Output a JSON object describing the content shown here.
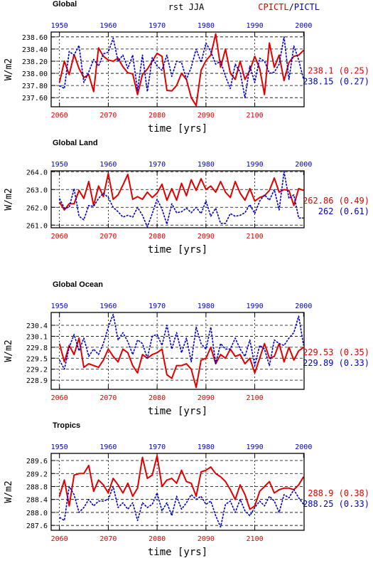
{
  "header": {
    "center": "rst JJA",
    "legend_red": "CPICTL",
    "legend_sep": "/",
    "legend_blue": "PICTL"
  },
  "colors": {
    "red": "#e00000",
    "blue": "#0000cc",
    "grid": "#000000"
  },
  "chart_data": [
    {
      "type": "line",
      "title": "Global",
      "ylabel": "W/m2",
      "xlabel": "time [yrs]",
      "ylim": [
        237.45,
        238.68
      ],
      "yticks": [
        237.6,
        237.8,
        238.0,
        238.2,
        238.4,
        238.6
      ],
      "ytick_labels": [
        "237.60",
        "237.80",
        "238.00",
        "238.20",
        "238.40",
        "238.60"
      ],
      "bottom_xticks": [
        2060,
        2070,
        2080,
        2090,
        2100
      ],
      "top_xticks": [
        1950,
        1960,
        1970,
        1980,
        1990,
        2000
      ],
      "stats_red": "238.1 (0.25)",
      "stats_blue": "238.15 (0.27)",
      "series": [
        {
          "color": "red",
          "x_start": 2060,
          "values": [
            237.85,
            238.2,
            237.98,
            238.31,
            238.08,
            237.93,
            237.98,
            237.7,
            238.42,
            238.28,
            238.22,
            238.2,
            238.25,
            238.11,
            238.01,
            237.99,
            237.65,
            237.98,
            238.07,
            238.2,
            238.33,
            238.28,
            237.72,
            237.71,
            237.8,
            238.0,
            237.9,
            237.6,
            237.47,
            238.05,
            238.21,
            238.3,
            238.65,
            238.1,
            238.4,
            238.0,
            237.9,
            238.2,
            237.9,
            238.05,
            238.28,
            238.08,
            237.65,
            238.5,
            238.1,
            238.3,
            237.88,
            238.18,
            238.28,
            238.3,
            238.38
          ]
        },
        {
          "color": "blue",
          "x_start": 2060,
          "values": [
            237.8,
            237.75,
            238.36,
            238.3,
            238.46,
            237.85,
            238.02,
            238.23,
            238.12,
            238.32,
            238.35,
            238.58,
            238.2,
            238.3,
            238.08,
            238.3,
            237.72,
            238.3,
            237.7,
            238.26,
            238.12,
            238.05,
            238.3,
            237.95,
            238.2,
            238.18,
            237.9,
            238.1,
            238.4,
            238.18,
            238.5,
            238.36,
            238.15,
            238.2,
            237.95,
            237.75,
            238.15,
            238.02,
            237.6,
            238.12,
            237.85,
            238.25,
            238.2,
            238.0,
            238.02,
            238.15,
            238.6,
            237.9,
            238.45,
            238.22,
            237.9
          ]
        }
      ]
    },
    {
      "type": "line",
      "title": "Global Land",
      "ylabel": "W/m2",
      "xlabel": "time [yrs]",
      "ylim": [
        260.85,
        264.05
      ],
      "yticks": [
        261.0,
        262.0,
        263.0,
        264.0
      ],
      "ytick_labels": [
        "261.0",
        "262.0",
        "263.0",
        "264.0"
      ],
      "bottom_xticks": [
        2060,
        2070,
        2080,
        2090,
        2100
      ],
      "top_xticks": [
        1950,
        1960,
        1970,
        1980,
        1990,
        2000
      ],
      "stats_red": "262.86 (0.49)",
      "stats_blue": "262 (0.61)",
      "series": [
        {
          "color": "red",
          "x_start": 2060,
          "values": [
            262.3,
            261.85,
            262.2,
            262.2,
            262.95,
            262.5,
            263.45,
            262.1,
            263.2,
            262.6,
            263.9,
            262.45,
            262.7,
            263.25,
            263.85,
            262.45,
            262.6,
            262.45,
            262.85,
            262.55,
            262.8,
            263.3,
            262.4,
            263.05,
            262.4,
            263.35,
            262.65,
            263.55,
            262.95,
            263.6,
            263.0,
            263.2,
            262.85,
            263.45,
            262.85,
            262.55,
            263.45,
            262.8,
            262.4,
            263.05,
            262.35,
            262.55,
            262.65,
            262.95,
            263.65,
            262.85,
            263.0,
            262.95,
            262.1,
            263.05,
            262.95
          ]
        },
        {
          "color": "blue",
          "x_start": 2060,
          "values": [
            262.5,
            261.95,
            262.0,
            263.05,
            261.5,
            261.3,
            262.1,
            262.05,
            262.5,
            262.8,
            262.55,
            262.0,
            261.75,
            261.45,
            261.55,
            261.45,
            262.0,
            261.55,
            260.9,
            261.65,
            262.45,
            261.9,
            261.05,
            262.2,
            261.7,
            261.75,
            261.95,
            261.7,
            262.0,
            261.65,
            262.35,
            261.5,
            261.95,
            261.1,
            261.1,
            261.65,
            261.5,
            261.55,
            261.7,
            262.15,
            261.65,
            262.35,
            262.7,
            262.4,
            263.0,
            261.85,
            264.0,
            262.5,
            262.7,
            261.4,
            261.4
          ]
        }
      ]
    },
    {
      "type": "line",
      "title": "Global Ocean",
      "ylabel": "W/m2",
      "xlabel": "time [yrs]",
      "ylim": [
        228.65,
        230.75
      ],
      "yticks": [
        228.9,
        229.2,
        229.5,
        229.8,
        230.1,
        230.4
      ],
      "ytick_labels": [
        "228.9",
        "229.2",
        "229.5",
        "229.8",
        "230.1",
        "230.4"
      ],
      "bottom_xticks": [
        2060,
        2070,
        2080,
        2090,
        2100
      ],
      "top_xticks": [
        1950,
        1960,
        1970,
        1980,
        1990,
        2000
      ],
      "stats_red": "229.53 (0.35)",
      "stats_blue": "229.89 (0.33)",
      "series": [
        {
          "color": "red",
          "x_start": 2060,
          "values": [
            229.9,
            229.4,
            229.85,
            229.6,
            230.05,
            229.25,
            229.35,
            229.3,
            229.25,
            229.45,
            229.75,
            229.55,
            229.4,
            229.75,
            229.65,
            229.3,
            229.1,
            229.6,
            229.5,
            229.6,
            229.65,
            229.75,
            229.05,
            228.95,
            229.3,
            229.3,
            229.35,
            229.2,
            228.7,
            229.45,
            229.5,
            229.8,
            229.35,
            229.6,
            229.5,
            229.75,
            229.55,
            229.6,
            229.35,
            229.5,
            229.1,
            229.5,
            229.9,
            229.5,
            229.55,
            229.9,
            229.4,
            229.8,
            229.45,
            229.7,
            229.8
          ]
        },
        {
          "color": "blue",
          "x_start": 2060,
          "values": [
            229.45,
            229.2,
            229.8,
            230.15,
            229.7,
            230.05,
            229.55,
            229.75,
            229.6,
            229.9,
            230.35,
            230.7,
            230.0,
            230.2,
            229.95,
            229.6,
            230.0,
            229.9,
            229.5,
            230.1,
            230.15,
            229.85,
            230.4,
            229.75,
            230.2,
            229.65,
            230.05,
            229.4,
            230.35,
            229.9,
            229.75,
            230.35,
            229.35,
            229.9,
            229.75,
            229.75,
            230.05,
            229.75,
            229.55,
            230.0,
            229.3,
            229.85,
            229.75,
            229.3,
            230.0,
            229.9,
            229.85,
            230.05,
            230.2,
            230.65,
            229.85
          ]
        }
      ]
    },
    {
      "type": "line",
      "title": "Tropics",
      "ylabel": "W/m2",
      "xlabel": "time [yrs]",
      "ylim": [
        287.45,
        289.82
      ],
      "yticks": [
        287.6,
        288.0,
        288.4,
        288.8,
        289.2,
        289.6
      ],
      "ytick_labels": [
        "287.6",
        "288.0",
        "288.4",
        "288.8",
        "289.2",
        "289.6"
      ],
      "bottom_xticks": [
        2060,
        2070,
        2080,
        2090,
        2100
      ],
      "top_xticks": [
        1950,
        1960,
        1970,
        1980,
        1990,
        2000
      ],
      "stats_red": "288.9 (0.38)",
      "stats_blue": "288.25 (0.33)",
      "series": [
        {
          "color": "red",
          "x_start": 2060,
          "values": [
            288.5,
            289.0,
            288.2,
            289.15,
            289.2,
            289.2,
            289.45,
            288.65,
            289.0,
            288.85,
            288.6,
            289.05,
            288.85,
            288.6,
            288.9,
            288.5,
            288.75,
            289.7,
            289.05,
            289.15,
            289.75,
            288.8,
            289.0,
            289.05,
            288.9,
            289.3,
            288.95,
            288.9,
            288.5,
            289.25,
            289.3,
            289.4,
            289.2,
            289.1,
            288.95,
            288.7,
            288.4,
            288.85,
            288.55,
            288.1,
            288.2,
            288.65,
            288.8,
            288.95,
            288.6,
            288.7,
            288.75,
            288.75,
            288.7,
            288.85,
            289.1
          ]
        },
        {
          "color": "blue",
          "x_start": 2060,
          "values": [
            287.85,
            287.75,
            288.8,
            288.55,
            288.0,
            288.15,
            288.4,
            288.2,
            288.35,
            288.35,
            288.4,
            288.8,
            288.15,
            288.3,
            288.1,
            288.3,
            287.75,
            288.3,
            288.15,
            288.25,
            288.6,
            288.05,
            288.3,
            287.9,
            288.5,
            288.1,
            288.3,
            288.55,
            288.4,
            288.5,
            288.25,
            288.35,
            287.9,
            287.55,
            288.25,
            288.35,
            288.0,
            288.4,
            288.05,
            287.9,
            288.15,
            288.35,
            288.2,
            288.5,
            288.35,
            288.0,
            288.55,
            288.45,
            288.7,
            288.45,
            288.25
          ]
        }
      ]
    }
  ]
}
